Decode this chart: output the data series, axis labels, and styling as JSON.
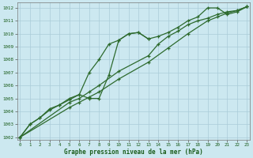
{
  "title": "Graphe pression niveau de la mer (hPa)",
  "background_color": "#cce8f0",
  "grid_color": "#aaccd8",
  "line_color": "#2d6a2d",
  "xlim_left": -0.3,
  "xlim_right": 23.3,
  "ylim_bottom": 1001.8,
  "ylim_top": 1012.4,
  "yticks": [
    1002,
    1003,
    1004,
    1005,
    1006,
    1007,
    1008,
    1009,
    1010,
    1011,
    1012
  ],
  "xticks": [
    0,
    1,
    2,
    3,
    4,
    5,
    6,
    7,
    8,
    9,
    10,
    11,
    12,
    13,
    14,
    15,
    16,
    17,
    18,
    19,
    20,
    21,
    22,
    23
  ],
  "s1_x": [
    0,
    1,
    2,
    3,
    4,
    5,
    6,
    7,
    8,
    9,
    10,
    11,
    12,
    13,
    14,
    15,
    16,
    17,
    18,
    19,
    20,
    21,
    22,
    23
  ],
  "s1_y": [
    1002.0,
    1003.0,
    1003.5,
    1004.2,
    1004.5,
    1005.0,
    1005.3,
    1007.0,
    1008.0,
    1009.2,
    1009.5,
    1010.0,
    1010.1,
    1009.6,
    1009.8,
    1010.1,
    1010.5,
    1011.0,
    1011.3,
    1012.0,
    1012.0,
    1011.5,
    1011.7,
    1012.1
  ],
  "s2_x": [
    0,
    1,
    2,
    3,
    4,
    5,
    6,
    7,
    8,
    9,
    10,
    11,
    12,
    13
  ],
  "s2_y": [
    1002.0,
    1003.0,
    1003.5,
    1004.1,
    1004.5,
    1004.9,
    1005.3,
    1005.0,
    1005.0,
    1006.8,
    1009.5,
    1010.0,
    1010.1,
    1009.6
  ],
  "s3_x": [
    0,
    5,
    6,
    7,
    8,
    10,
    13,
    14,
    15,
    16,
    17,
    18,
    19,
    20,
    21,
    22,
    23
  ],
  "s3_y": [
    1002.0,
    1004.7,
    1005.0,
    1005.5,
    1006.0,
    1007.1,
    1008.3,
    1009.2,
    1009.8,
    1010.2,
    1010.7,
    1011.0,
    1011.2,
    1011.5,
    1011.7,
    1011.8,
    1012.1
  ],
  "s4_x": [
    0,
    5,
    6,
    7,
    8,
    10,
    13,
    15,
    17,
    19,
    20,
    21,
    22,
    23
  ],
  "s4_y": [
    1002.0,
    1004.3,
    1004.7,
    1005.1,
    1005.5,
    1006.5,
    1007.8,
    1008.9,
    1010.0,
    1011.0,
    1011.3,
    1011.6,
    1011.8,
    1012.1
  ]
}
